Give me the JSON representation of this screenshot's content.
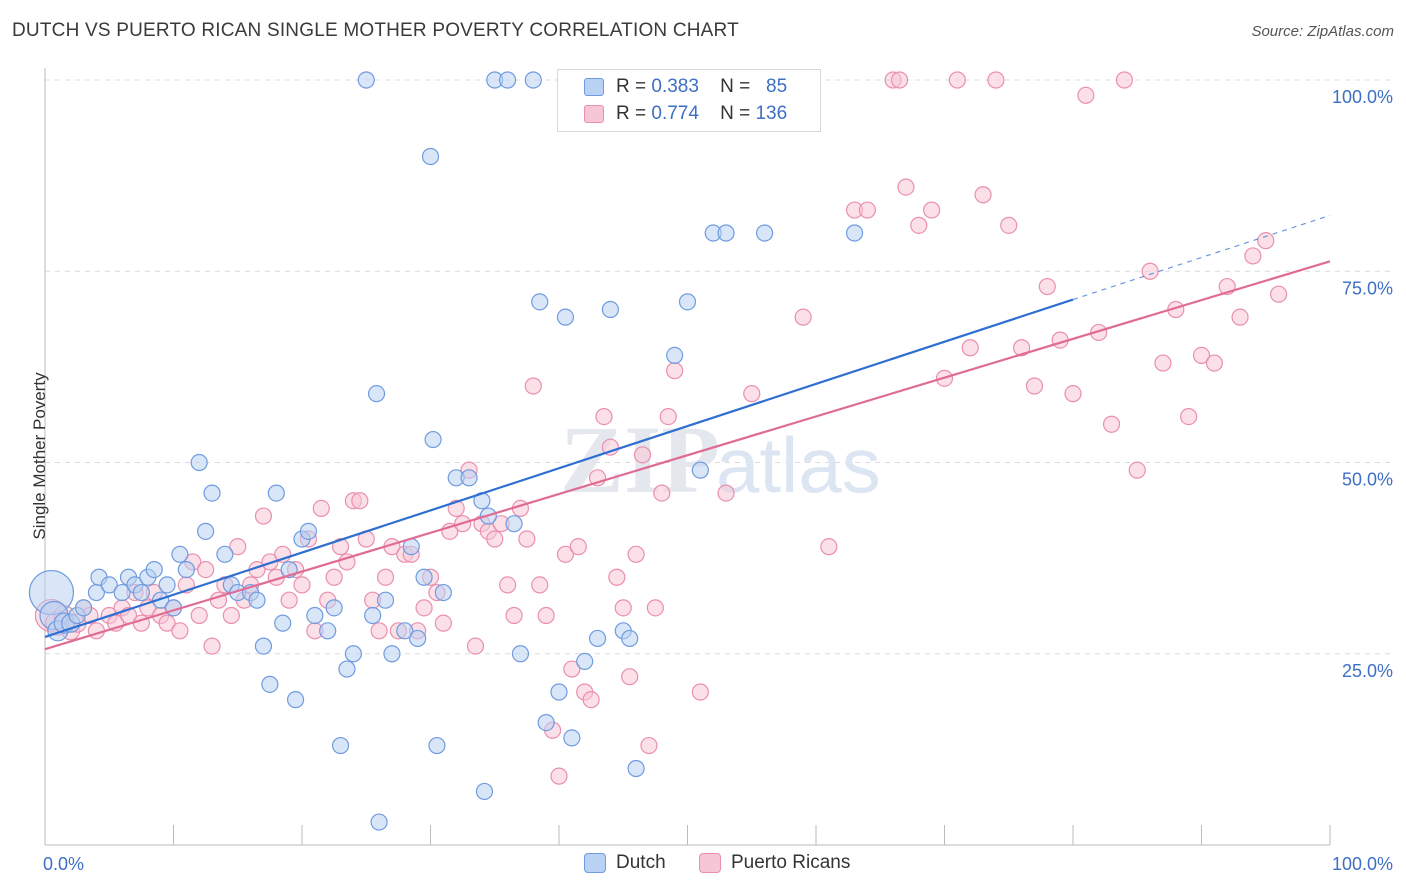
{
  "title": "DUTCH VS PUERTO RICAN SINGLE MOTHER POVERTY CORRELATION CHART",
  "source": "Source: ZipAtlas.com",
  "watermark": {
    "zip": "ZIP",
    "atlas": "atlas"
  },
  "legend": {
    "rows": [
      {
        "r_label": "R =",
        "r_value": "0.383",
        "n_label": "N =",
        "n_value": "85",
        "color": "#6f9be0",
        "fill": "#b9d1f3"
      },
      {
        "r_label": "R =",
        "r_value": "0.774",
        "n_label": "N =",
        "n_value": "136",
        "color": "#ea8fae",
        "fill": "#f7c6d6"
      }
    ]
  },
  "bottom_legend": [
    "Dutch",
    "Puerto Ricans"
  ],
  "chart_data": {
    "type": "scatter",
    "title": "DUTCH VS PUERTO RICAN SINGLE MOTHER POVERTY CORRELATION CHART",
    "xlabel": "",
    "ylabel": "Single Mother Poverty",
    "xlim": [
      0,
      100
    ],
    "ylim": [
      0,
      100
    ],
    "x_tick_labels": [
      "0.0%",
      "100.0%"
    ],
    "y_tick_labels": [
      "25.0%",
      "50.0%",
      "75.0%",
      "100.0%"
    ],
    "y_ticks": [
      25,
      50,
      75,
      100
    ],
    "grid": true,
    "legend_position": "top-center",
    "colors": {
      "dutch": "#6f9be0",
      "dutch_fill": "#b9d1f3",
      "dutch_line": "#2f6fd1",
      "pr": "#ea8fae",
      "pr_fill": "#f7c6d6",
      "pr_line": "#e06b94",
      "axis_label": "#3d6fc4"
    },
    "series": [
      {
        "name": "Dutch",
        "trend": {
          "x0": 0,
          "y0": 27.2,
          "x1": 80,
          "y1": 71.3,
          "dash_to_x": 100,
          "dash_to_y": 82.3
        },
        "points": [
          [
            0.5,
            33,
            22
          ],
          [
            0.7,
            30,
            14
          ],
          [
            1,
            28,
            10
          ],
          [
            1.5,
            29,
            10
          ],
          [
            2,
            29,
            9
          ],
          [
            2.5,
            30,
            8
          ],
          [
            3,
            31,
            8
          ],
          [
            4,
            33,
            8
          ],
          [
            4.2,
            35,
            8
          ],
          [
            5,
            34,
            8
          ],
          [
            6,
            33,
            8
          ],
          [
            6.5,
            35,
            8
          ],
          [
            7,
            34,
            8
          ],
          [
            7.5,
            33,
            8
          ],
          [
            8,
            35,
            8
          ],
          [
            8.5,
            36,
            8
          ],
          [
            9,
            32,
            8
          ],
          [
            9.5,
            34,
            8
          ],
          [
            10,
            31,
            8
          ],
          [
            10.5,
            38,
            8
          ],
          [
            11,
            36,
            8
          ],
          [
            12,
            50,
            8
          ],
          [
            12.5,
            41,
            8
          ],
          [
            13,
            46,
            8
          ],
          [
            14,
            38,
            8
          ],
          [
            14.5,
            34,
            8
          ],
          [
            15,
            33,
            8
          ],
          [
            16,
            33,
            8
          ],
          [
            16.5,
            32,
            8
          ],
          [
            17,
            26,
            8
          ],
          [
            17.5,
            21,
            8
          ],
          [
            18,
            46,
            8
          ],
          [
            18.5,
            29,
            8
          ],
          [
            19,
            36,
            8
          ],
          [
            19.5,
            19,
            8
          ],
          [
            20,
            40,
            8
          ],
          [
            20.5,
            41,
            8
          ],
          [
            21,
            30,
            8
          ],
          [
            22,
            28,
            8
          ],
          [
            23,
            13,
            8
          ],
          [
            23.5,
            23,
            8
          ],
          [
            25,
            100,
            8
          ],
          [
            22.5,
            31,
            8
          ],
          [
            24,
            25,
            8
          ],
          [
            25.5,
            30,
            8
          ],
          [
            26,
            3,
            8
          ],
          [
            25.8,
            59,
            8
          ],
          [
            26.5,
            32,
            8
          ],
          [
            27,
            25,
            8
          ],
          [
            28,
            28,
            8
          ],
          [
            28.5,
            39,
            8
          ],
          [
            29,
            27,
            8
          ],
          [
            29.5,
            35,
            8
          ],
          [
            30,
            90,
            8
          ],
          [
            30.2,
            53,
            8
          ],
          [
            30.5,
            13,
            8
          ],
          [
            31,
            33,
            8
          ],
          [
            32,
            48,
            8
          ],
          [
            33,
            48,
            8
          ],
          [
            34,
            45,
            8
          ],
          [
            34.2,
            7,
            8
          ],
          [
            34.5,
            43,
            8
          ],
          [
            35,
            100,
            8
          ],
          [
            36,
            100,
            8
          ],
          [
            36.5,
            42,
            8
          ],
          [
            37,
            25,
            8
          ],
          [
            38,
            100,
            8
          ],
          [
            38.5,
            71,
            8
          ],
          [
            39,
            16,
            8
          ],
          [
            40,
            20,
            8
          ],
          [
            40.5,
            69,
            8
          ],
          [
            41,
            14,
            8
          ],
          [
            42,
            24,
            8
          ],
          [
            43,
            27,
            8
          ],
          [
            44,
            70,
            8
          ],
          [
            45,
            28,
            8
          ],
          [
            45.5,
            27,
            8
          ],
          [
            46,
            10,
            8
          ],
          [
            49,
            64,
            8
          ],
          [
            50,
            71,
            8
          ],
          [
            51,
            49,
            8
          ],
          [
            52,
            80,
            8
          ],
          [
            53,
            80,
            8
          ],
          [
            56,
            80,
            8
          ],
          [
            63,
            80,
            8
          ]
        ]
      },
      {
        "name": "Puerto Ricans",
        "trend": {
          "x0": 0,
          "y0": 25.6,
          "x1": 100,
          "y1": 76.3
        },
        "points": [
          [
            0.5,
            30,
            16
          ],
          [
            1,
            29,
            12
          ],
          [
            1.5,
            30,
            10
          ],
          [
            2,
            28,
            9
          ],
          [
            2.5,
            29,
            9
          ],
          [
            3,
            31,
            8
          ],
          [
            3.5,
            30,
            8
          ],
          [
            4,
            28,
            8
          ],
          [
            5,
            30,
            8
          ],
          [
            5.5,
            29,
            8
          ],
          [
            6,
            31,
            8
          ],
          [
            6.5,
            30,
            8
          ],
          [
            7,
            33,
            8
          ],
          [
            7.5,
            29,
            8
          ],
          [
            8,
            31,
            8
          ],
          [
            8.5,
            33,
            8
          ],
          [
            9,
            30,
            8
          ],
          [
            9.5,
            29,
            8
          ],
          [
            10,
            31,
            8
          ],
          [
            10.5,
            28,
            8
          ],
          [
            11,
            34,
            8
          ],
          [
            11.5,
            37,
            8
          ],
          [
            12,
            30,
            8
          ],
          [
            12.5,
            36,
            8
          ],
          [
            13,
            26,
            8
          ],
          [
            13.5,
            32,
            8
          ],
          [
            14,
            34,
            8
          ],
          [
            14.5,
            30,
            8
          ],
          [
            15,
            39,
            8
          ],
          [
            15.5,
            32,
            8
          ],
          [
            16,
            34,
            8
          ],
          [
            16.5,
            36,
            8
          ],
          [
            17,
            43,
            8
          ],
          [
            17.5,
            37,
            8
          ],
          [
            18,
            35,
            8
          ],
          [
            18.5,
            38,
            8
          ],
          [
            19,
            32,
            8
          ],
          [
            19.5,
            36,
            8
          ],
          [
            20,
            34,
            8
          ],
          [
            20.5,
            40,
            8
          ],
          [
            21,
            28,
            8
          ],
          [
            21.5,
            44,
            8
          ],
          [
            22,
            32,
            8
          ],
          [
            22.5,
            35,
            8
          ],
          [
            23,
            39,
            8
          ],
          [
            23.5,
            37,
            8
          ],
          [
            24,
            45,
            8
          ],
          [
            24.5,
            45,
            8
          ],
          [
            25,
            40,
            8
          ],
          [
            25.5,
            32,
            8
          ],
          [
            26,
            28,
            8
          ],
          [
            26.5,
            35,
            8
          ],
          [
            27,
            39,
            8
          ],
          [
            27.5,
            28,
            8
          ],
          [
            28,
            38,
            8
          ],
          [
            28.5,
            38,
            8
          ],
          [
            29,
            28,
            8
          ],
          [
            29.5,
            31,
            8
          ],
          [
            30,
            35,
            8
          ],
          [
            30.5,
            33,
            8
          ],
          [
            31,
            29,
            8
          ],
          [
            31.5,
            41,
            8
          ],
          [
            32,
            44,
            8
          ],
          [
            32.5,
            42,
            8
          ],
          [
            33,
            49,
            8
          ],
          [
            33.5,
            26,
            8
          ],
          [
            34,
            42,
            8
          ],
          [
            34.5,
            41,
            8
          ],
          [
            35,
            40,
            8
          ],
          [
            35.5,
            42,
            8
          ],
          [
            36,
            34,
            8
          ],
          [
            36.5,
            30,
            8
          ],
          [
            37,
            44,
            8
          ],
          [
            37.5,
            40,
            8
          ],
          [
            38,
            60,
            8
          ],
          [
            38.5,
            34,
            8
          ],
          [
            39,
            30,
            8
          ],
          [
            39.5,
            15,
            8
          ],
          [
            40,
            9,
            8
          ],
          [
            40.5,
            38,
            8
          ],
          [
            41,
            23,
            8
          ],
          [
            41.5,
            39,
            8
          ],
          [
            42,
            20,
            8
          ],
          [
            42.5,
            19,
            8
          ],
          [
            43,
            48,
            8
          ],
          [
            43.5,
            56,
            8
          ],
          [
            44,
            52,
            8
          ],
          [
            44.5,
            35,
            8
          ],
          [
            45,
            31,
            8
          ],
          [
            45.5,
            22,
            8
          ],
          [
            46,
            38,
            8
          ],
          [
            46.5,
            51,
            8
          ],
          [
            47,
            13,
            8
          ],
          [
            47.5,
            31,
            8
          ],
          [
            48,
            46,
            8
          ],
          [
            48.5,
            56,
            8
          ],
          [
            49,
            62,
            8
          ],
          [
            51,
            20,
            8
          ],
          [
            53,
            46,
            8
          ],
          [
            55,
            59,
            8
          ],
          [
            59,
            69,
            8
          ],
          [
            61,
            39,
            8
          ],
          [
            63,
            83,
            8
          ],
          [
            64,
            83,
            8
          ],
          [
            66,
            100,
            8
          ],
          [
            66.5,
            100,
            8
          ],
          [
            67,
            86,
            8
          ],
          [
            68,
            81,
            8
          ],
          [
            69,
            83,
            8
          ],
          [
            70,
            61,
            8
          ],
          [
            71,
            100,
            8
          ],
          [
            72,
            65,
            8
          ],
          [
            73,
            85,
            8
          ],
          [
            74,
            100,
            8
          ],
          [
            75,
            81,
            8
          ],
          [
            76,
            65,
            8
          ],
          [
            77,
            60,
            8
          ],
          [
            78,
            73,
            8
          ],
          [
            79,
            66,
            8
          ],
          [
            80,
            59,
            8
          ],
          [
            81,
            98,
            8
          ],
          [
            82,
            67,
            8
          ],
          [
            83,
            55,
            8
          ],
          [
            84,
            100,
            8
          ],
          [
            85,
            49,
            8
          ],
          [
            86,
            75,
            8
          ],
          [
            87,
            63,
            8
          ],
          [
            88,
            70,
            8
          ],
          [
            89,
            56,
            8
          ],
          [
            90,
            64,
            8
          ],
          [
            91,
            63,
            8
          ],
          [
            92,
            73,
            8
          ],
          [
            93,
            69,
            8
          ],
          [
            94,
            77,
            8
          ],
          [
            95,
            79,
            8
          ],
          [
            96,
            72,
            8
          ]
        ]
      }
    ]
  }
}
